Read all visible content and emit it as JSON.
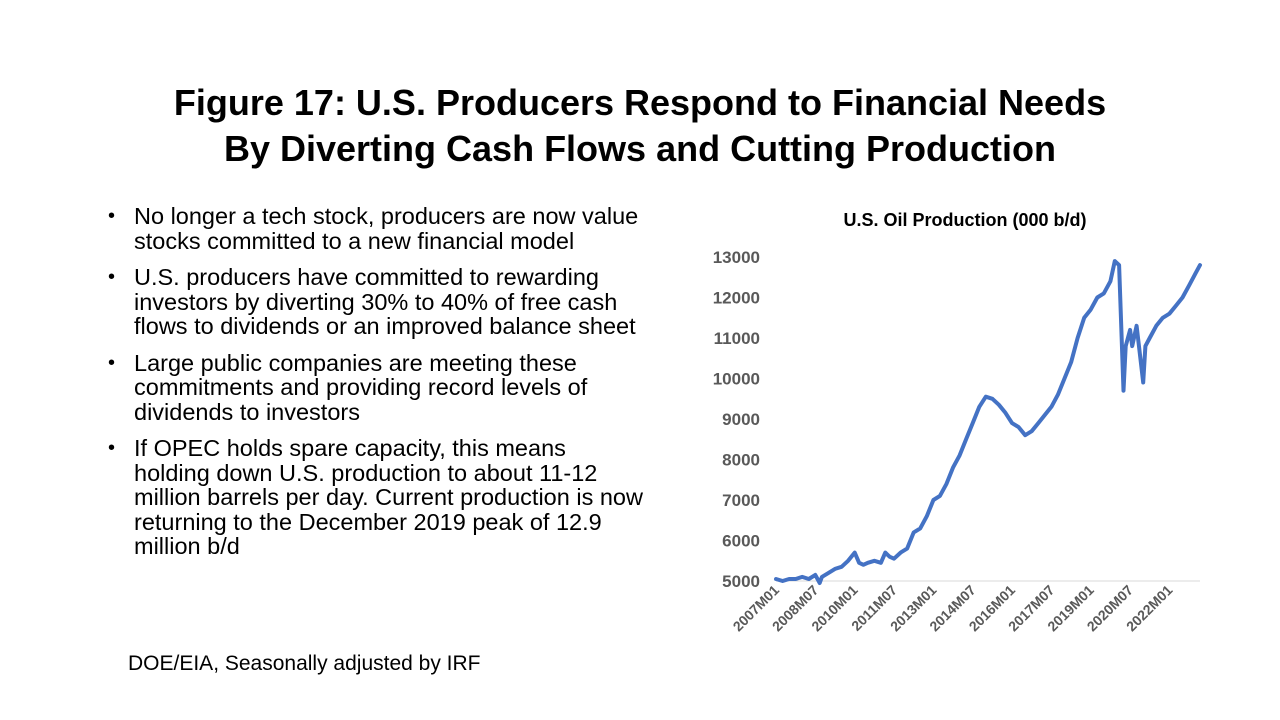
{
  "slide": {
    "title_line1": "Figure 17: U.S. Producers Respond to Financial Needs",
    "title_line2": "By Diverting Cash Flows and Cutting Production",
    "bullets": [
      "No longer a tech stock, producers are now value stocks committed to a new financial model",
      "U.S. producers have committed to rewarding investors by diverting 30% to 40% of free cash flows to dividends or an improved balance sheet",
      "Large public companies are meeting these commitments and providing record levels of dividends to investors",
      "If OPEC holds spare capacity, this means holding down U.S. production to about 11-12 million barrels per day.  Current production is now returning to the December 2019 peak of 12.9 million b/d"
    ],
    "bullet_symbol": "•",
    "source": "DOE/EIA, Seasonally adjusted by IRF"
  },
  "chart_data": {
    "type": "line",
    "title": "U.S. Oil Production  (000 b/d)",
    "xlabel": "",
    "ylabel": "",
    "ylim": [
      5000,
      13000
    ],
    "yticks": [
      5000,
      6000,
      7000,
      8000,
      9000,
      10000,
      11000,
      12000,
      13000
    ],
    "x_tick_labels": [
      "2007M01",
      "2008M07",
      "2010M01",
      "2011M07",
      "2013M01",
      "2014M07",
      "2016M01",
      "2017M07",
      "2019M01",
      "2020M07",
      "2022M01"
    ],
    "grid": "baseline only",
    "legend": "none",
    "line_color": "#4472C4",
    "series": [
      {
        "x": [
          "2007M01",
          "2007M04",
          "2007M07",
          "2007M10",
          "2008M01",
          "2008M04",
          "2008M07",
          "2008M09",
          "2008M10",
          "2009M01",
          "2009M04",
          "2009M07",
          "2009M10",
          "2010M01",
          "2010M03",
          "2010M05",
          "2010M07",
          "2010M10",
          "2011M01",
          "2011M03",
          "2011M05",
          "2011M07",
          "2011M10",
          "2012M01",
          "2012M04",
          "2012M07",
          "2012M10",
          "2013M01",
          "2013M04",
          "2013M07",
          "2013M10",
          "2014M01",
          "2014M04",
          "2014M07",
          "2014M10",
          "2015M01",
          "2015M04",
          "2015M07",
          "2015M10",
          "2016M01",
          "2016M04",
          "2016M07",
          "2016M10",
          "2017M01",
          "2017M04",
          "2017M07",
          "2017M10",
          "2018M01",
          "2018M04",
          "2018M07",
          "2018M10",
          "2019M01",
          "2019M04",
          "2019M07",
          "2019M10",
          "2019M12",
          "2020M02",
          "2020M04",
          "2020M05",
          "2020M07",
          "2020M08",
          "2020M10",
          "2021M01",
          "2021M02",
          "2021M04",
          "2021M07",
          "2021M10",
          "2022M01",
          "2022M04",
          "2022M07",
          "2022M10",
          "2023M01",
          "2023M03"
        ],
        "values": [
          5050,
          5000,
          5050,
          5050,
          5100,
          5050,
          5150,
          4950,
          5100,
          5200,
          5300,
          5350,
          5500,
          5700,
          5450,
          5400,
          5450,
          5500,
          5450,
          5700,
          5600,
          5550,
          5700,
          5800,
          6200,
          6300,
          6600,
          7000,
          7100,
          7400,
          7800,
          8100,
          8500,
          8900,
          9300,
          9550,
          9500,
          9350,
          9150,
          8900,
          8800,
          8600,
          8700,
          8900,
          9100,
          9300,
          9600,
          10000,
          10400,
          11000,
          11500,
          11700,
          12000,
          12100,
          12400,
          12900,
          12800,
          9700,
          10800,
          11200,
          10800,
          11300,
          9900,
          10800,
          11000,
          11300,
          11500,
          11600,
          11800,
          12000,
          12300,
          12600,
          12800
        ]
      }
    ]
  }
}
